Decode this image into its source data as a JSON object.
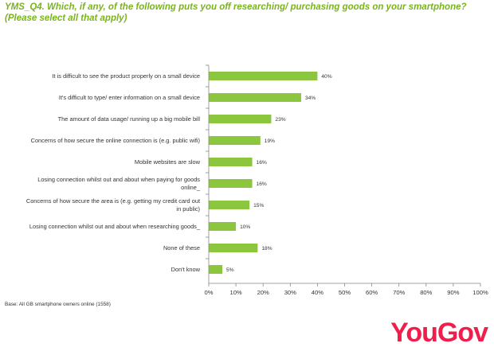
{
  "title": "YMS_Q4. Which, if any, of the following puts you off researching/ purchasing goods on your smartphone? (Please select all that apply)",
  "base_note": "Base: All GB smartphone owners online (1558)",
  "logo_text": "YouGov",
  "colors": {
    "bar": "#8cc63f",
    "title": "#7ab41d",
    "logo": "#ef1e4b",
    "axis": "#888888"
  },
  "chart_data": {
    "type": "bar",
    "orientation": "horizontal",
    "categories": [
      [
        "It is difficult to see the product properly on a small device"
      ],
      [
        "It's difficult to type/ enter information on a small device"
      ],
      [
        "The amount of data usage/ running up a big mobile bill"
      ],
      [
        "Concerns of how secure the online connection is (e.g. public wifi)"
      ],
      [
        "Mobile websites are slow"
      ],
      [
        "Losing connection whilst out and about when paying for goods",
        "online_"
      ],
      [
        "Concerns of how secure the area is (e.g. getting my credit card out",
        "in public)"
      ],
      [
        "Losing connection whilst out and about when researching goods_"
      ],
      [
        "None of these"
      ],
      [
        "Don't know"
      ]
    ],
    "values": [
      40,
      34,
      23,
      19,
      16,
      16,
      15,
      10,
      18,
      5
    ],
    "value_labels": [
      "40%",
      "34%",
      "23%",
      "19%",
      "16%",
      "16%",
      "15%",
      "10%",
      "18%",
      "5%"
    ],
    "xlim": [
      0,
      100
    ],
    "xticks": [
      "0%",
      "10%",
      "20%",
      "30%",
      "40%",
      "50%",
      "60%",
      "70%",
      "80%",
      "90%",
      "100%"
    ],
    "grid": false,
    "legend": "none"
  }
}
